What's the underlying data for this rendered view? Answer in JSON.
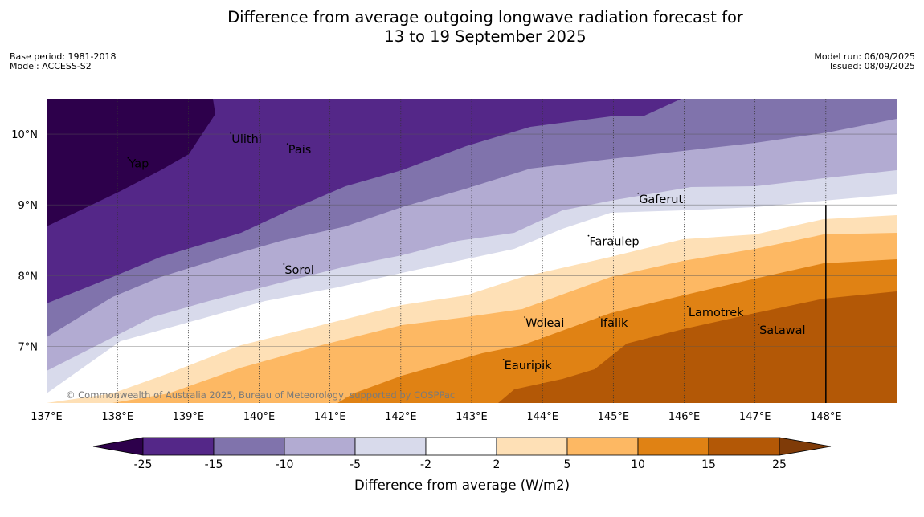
{
  "title": {
    "line1": "Difference from average outgoing longwave radiation forecast for",
    "line2": "13 to 19 September 2025"
  },
  "meta": {
    "base_period": "Base period: 1981-2018",
    "model": "Model: ACCESS-S2",
    "model_run": "Model run: 06/09/2025",
    "issued": "Issued: 08/09/2025"
  },
  "map": {
    "lon_range": [
      137,
      149
    ],
    "lat_range": [
      6.2,
      10.5
    ],
    "lon_ticks": [
      137,
      138,
      139,
      140,
      141,
      142,
      143,
      144,
      145,
      146,
      147,
      148
    ],
    "lon_tick_labels": [
      "137°E",
      "138°E",
      "139°E",
      "140°E",
      "141°E",
      "142°E",
      "143°E",
      "144°E",
      "145°E",
      "146°E",
      "147°E",
      "148°E"
    ],
    "lat_ticks": [
      7,
      8,
      9,
      10
    ],
    "lat_tick_labels": [
      "7°N",
      "8°N",
      "9°N",
      "10°N"
    ],
    "copyright": "© Commonwealth of Australia 2025, Bureau of Meteorology, supported by COSPPac",
    "boundary_line_lon": 148.0,
    "places": [
      {
        "name": "Yap",
        "lon": 138.15,
        "lat": 9.55
      },
      {
        "name": "Ulithi",
        "lon": 139.6,
        "lat": 9.9
      },
      {
        "name": "Pais",
        "lon": 140.4,
        "lat": 9.75
      },
      {
        "name": "Gaferut",
        "lon": 145.35,
        "lat": 9.05
      },
      {
        "name": "Faraulep",
        "lon": 144.65,
        "lat": 8.45
      },
      {
        "name": "Sorol",
        "lon": 140.35,
        "lat": 8.05
      },
      {
        "name": "Woleai",
        "lon": 143.75,
        "lat": 7.3
      },
      {
        "name": "Ifalik",
        "lon": 144.8,
        "lat": 7.3
      },
      {
        "name": "Lamotrek",
        "lon": 146.05,
        "lat": 7.45
      },
      {
        "name": "Satawal",
        "lon": 147.05,
        "lat": 7.2
      },
      {
        "name": "Eauripik",
        "lon": 143.45,
        "lat": 6.7
      }
    ]
  },
  "colorbar": {
    "title": "Difference from average (W/m2)",
    "labels": [
      "-25",
      "-15",
      "-10",
      "-5",
      "-2",
      "2",
      "5",
      "10",
      "15",
      "25"
    ],
    "under_color": "#2d004b",
    "over_color": "#7f3b08",
    "colors": [
      "#542788",
      "#8073ac",
      "#b2abd2",
      "#d8daeb",
      "#ffffff",
      "#fee0b6",
      "#fdb863",
      "#e08214",
      "#b35806"
    ]
  }
}
